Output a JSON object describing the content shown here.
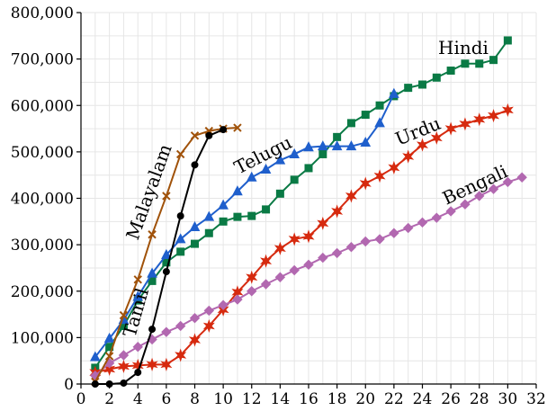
{
  "chart_data": {
    "type": "line",
    "title": "",
    "xlabel": "",
    "ylabel": "",
    "xlim": [
      0,
      32
    ],
    "ylim": [
      0,
      800000
    ],
    "grid": true,
    "legend": "none",
    "x_ticks": [
      0,
      2,
      4,
      6,
      8,
      10,
      12,
      14,
      16,
      18,
      20,
      22,
      24,
      26,
      28,
      30,
      32
    ],
    "x_tick_labels": [
      "0",
      "2",
      "4",
      "6",
      "8",
      "10",
      "12",
      "14",
      "16",
      "18",
      "20",
      "22",
      "24",
      "26",
      "28",
      "30",
      "32"
    ],
    "y_ticks": [
      0,
      100000,
      200000,
      300000,
      400000,
      500000,
      600000,
      700000,
      800000
    ],
    "y_tick_labels": [
      "0",
      "100,000",
      "200,000",
      "300,000",
      "400,000",
      "500,000",
      "600,000",
      "700,000",
      "800,000"
    ],
    "series": [
      {
        "name": "Hindi",
        "color": "#0a7a45",
        "marker": "square",
        "x": [
          1,
          2,
          3,
          4,
          5,
          6,
          7,
          8,
          9,
          10,
          11,
          12,
          13,
          14,
          15,
          16,
          17,
          18,
          19,
          20,
          21,
          22,
          23,
          24,
          25,
          26,
          27,
          28,
          29,
          30
        ],
        "y": [
          35000,
          80000,
          125000,
          180000,
          222000,
          262000,
          285000,
          302000,
          325000,
          350000,
          360000,
          362000,
          376000,
          410000,
          440000,
          465000,
          495000,
          532000,
          562000,
          580000,
          600000,
          620000,
          638000,
          645000,
          660000,
          675000,
          690000,
          690000,
          698000,
          740000
        ]
      },
      {
        "name": "Telugu",
        "color": "#1f5fcc",
        "marker": "triangle",
        "x": [
          1,
          2,
          3,
          4,
          5,
          6,
          7,
          8,
          9,
          10,
          11,
          12,
          13,
          14,
          15,
          16,
          17,
          18,
          19,
          20,
          21,
          22
        ],
        "y": [
          58000,
          98000,
          138000,
          188000,
          238000,
          278000,
          312000,
          338000,
          360000,
          385000,
          415000,
          445000,
          462000,
          482000,
          495000,
          510000,
          512000,
          512000,
          512000,
          520000,
          562000,
          625000
        ]
      },
      {
        "name": "Urdu",
        "color": "#d62a0f",
        "marker": "star",
        "x": [
          1,
          2,
          3,
          4,
          5,
          6,
          7,
          8,
          9,
          10,
          11,
          12,
          13,
          14,
          15,
          16,
          17,
          18,
          19,
          20,
          21,
          22,
          23,
          24,
          25,
          26,
          27,
          28,
          29,
          30
        ],
        "y": [
          25000,
          32000,
          38000,
          40000,
          42000,
          42000,
          62000,
          95000,
          125000,
          160000,
          198000,
          230000,
          265000,
          292000,
          312000,
          318000,
          346000,
          372000,
          405000,
          432000,
          448000,
          466000,
          490000,
          515000,
          530000,
          550000,
          560000,
          570000,
          578000,
          590000
        ]
      },
      {
        "name": "Bengali",
        "color": "#b268b0",
        "marker": "diamond",
        "x": [
          1,
          2,
          3,
          4,
          5,
          6,
          7,
          8,
          9,
          10,
          11,
          12,
          13,
          14,
          15,
          16,
          17,
          18,
          19,
          20,
          21,
          22,
          23,
          24,
          25,
          26,
          27,
          28,
          29,
          30,
          31
        ],
        "y": [
          18000,
          45000,
          62000,
          80000,
          96000,
          112000,
          125000,
          142000,
          158000,
          170000,
          182000,
          200000,
          215000,
          230000,
          245000,
          257000,
          272000,
          282000,
          295000,
          307000,
          312000,
          325000,
          336000,
          348000,
          358000,
          372000,
          387000,
          405000,
          420000,
          435000,
          445000
        ]
      },
      {
        "name": "Malayalam",
        "color": "#a0520a",
        "marker": "x",
        "x": [
          1,
          2,
          3,
          4,
          5,
          6,
          7,
          8,
          9,
          10,
          11
        ],
        "y": [
          5000,
          60000,
          148000,
          225000,
          322000,
          405000,
          495000,
          535000,
          545000,
          550000,
          552000
        ]
      },
      {
        "name": "Tamil",
        "color": "#000000",
        "marker": "circle",
        "x": [
          1,
          2,
          3,
          4,
          5,
          6,
          7,
          8,
          9,
          10
        ],
        "y": [
          0,
          0,
          2000,
          25000,
          118000,
          242000,
          362000,
          472000,
          535000,
          548000
        ]
      }
    ],
    "annotations": [
      "Hindi",
      "Telugu",
      "Urdu",
      "Bengali",
      "Malayalam",
      "Tamil"
    ]
  }
}
